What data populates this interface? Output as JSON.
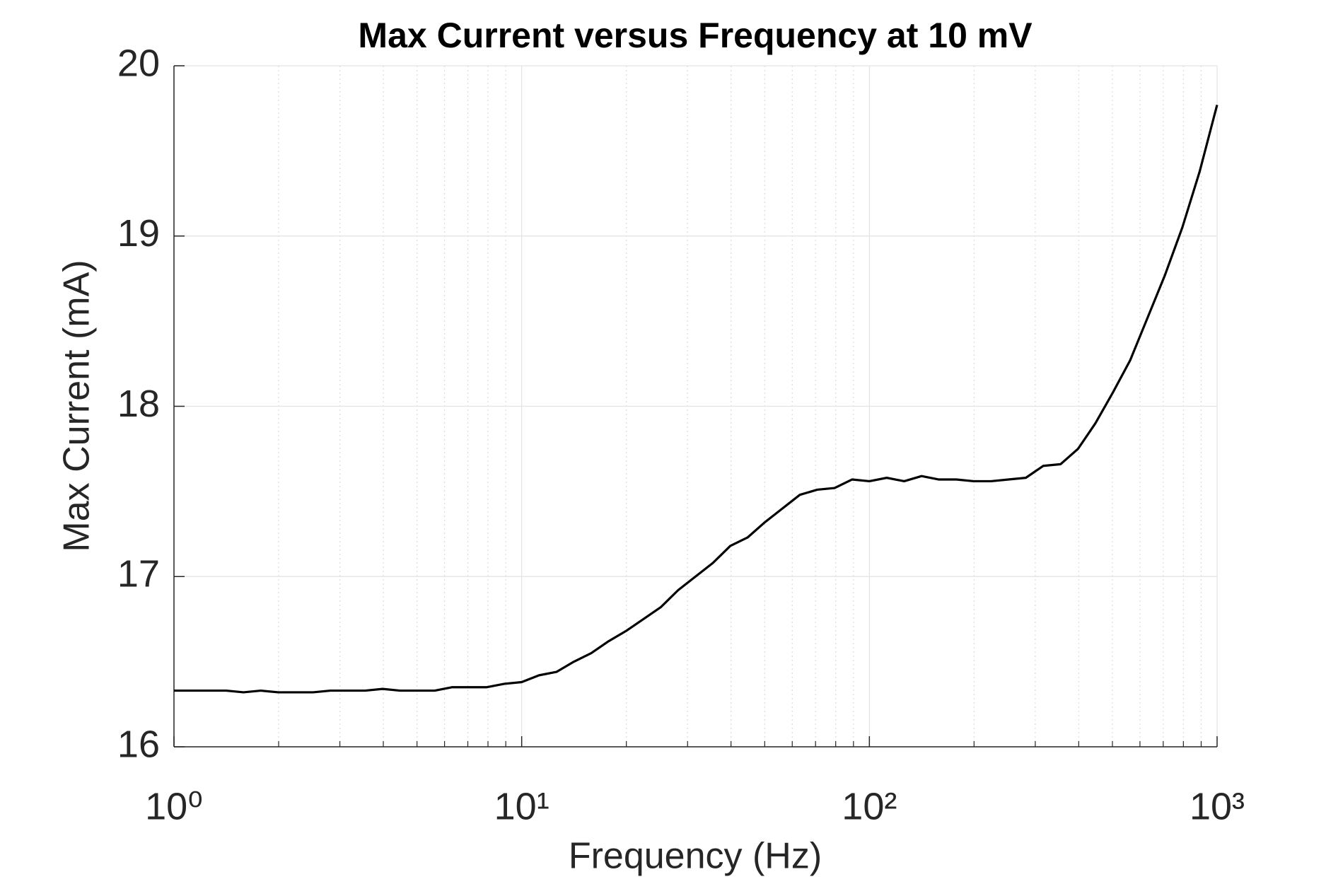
{
  "chart_data": {
    "type": "line",
    "title": "Max Current versus Frequency at 10 mV",
    "x_label": "Frequency (Hz)",
    "y_label": "Max Current (mA)",
    "x_scale": "log",
    "grid": true,
    "xlim": [
      1,
      1000
    ],
    "ylim": [
      16,
      20
    ],
    "xticks": [
      {
        "value": 1,
        "label": "10⁰"
      },
      {
        "value": 10,
        "label": "10¹"
      },
      {
        "value": 100,
        "label": "10²"
      },
      {
        "value": 1000,
        "label": "10³"
      }
    ],
    "xminorticks": [
      2,
      3,
      4,
      5,
      6,
      7,
      8,
      9,
      20,
      30,
      40,
      50,
      60,
      70,
      80,
      90,
      200,
      300,
      400,
      500,
      600,
      700,
      800,
      900
    ],
    "yticks": [
      16,
      17,
      18,
      19,
      20
    ],
    "series": [
      {
        "color": "#000000",
        "x": [
          1,
          1.122,
          1.259,
          1.413,
          1.585,
          1.778,
          1.995,
          2.239,
          2.512,
          2.818,
          3.162,
          3.548,
          3.981,
          4.467,
          5.012,
          5.623,
          6.31,
          7.079,
          7.943,
          8.913,
          10,
          11.22,
          12.59,
          14.13,
          15.85,
          17.78,
          19.95,
          22.39,
          25.12,
          28.18,
          31.62,
          35.48,
          39.81,
          44.67,
          50.12,
          56.23,
          63.1,
          70.79,
          79.43,
          89.13,
          100,
          112.2,
          125.9,
          141.3,
          158.5,
          177.8,
          199.5,
          223.9,
          251.2,
          281.8,
          316.2,
          354.8,
          398.1,
          446.7,
          501.2,
          562.3,
          631,
          707.9,
          794.3,
          891.3,
          1000
        ],
        "values": [
          16.33,
          16.33,
          16.33,
          16.33,
          16.32,
          16.33,
          16.32,
          16.32,
          16.32,
          16.33,
          16.33,
          16.33,
          16.34,
          16.33,
          16.33,
          16.33,
          16.35,
          16.35,
          16.35,
          16.37,
          16.38,
          16.42,
          16.44,
          16.5,
          16.55,
          16.62,
          16.68,
          16.75,
          16.82,
          16.92,
          17.0,
          17.08,
          17.18,
          17.23,
          17.32,
          17.4,
          17.48,
          17.51,
          17.52,
          17.57,
          17.56,
          17.58,
          17.56,
          17.59,
          17.57,
          17.57,
          17.56,
          17.56,
          17.57,
          17.58,
          17.65,
          17.66,
          17.75,
          17.9,
          18.08,
          18.27,
          18.52,
          18.77,
          19.05,
          19.38,
          19.77
        ]
      }
    ]
  }
}
